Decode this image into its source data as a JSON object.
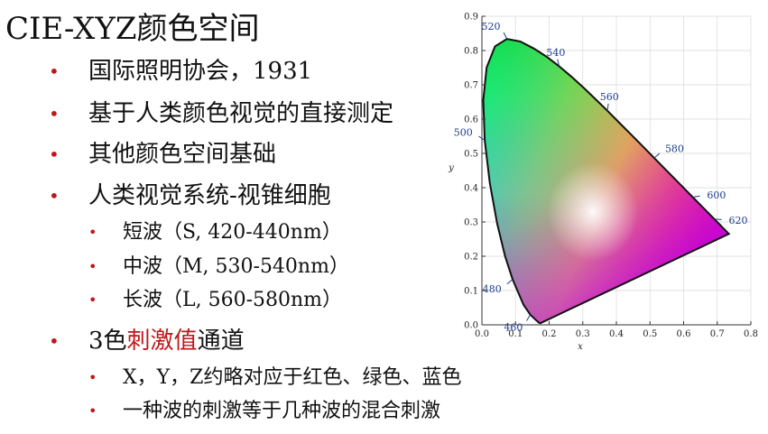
{
  "slide": {
    "title": "CIE-XYZ颜色空间",
    "bullets": [
      {
        "text": "国际照明协会，1931"
      },
      {
        "text": "基于人类颜色视觉的直接测定"
      },
      {
        "text": "其他颜色空间基础"
      },
      {
        "text": "人类视觉系统-视锥细胞"
      },
      {
        "text": "短波（S, 420-440nm）"
      },
      {
        "text": "中波（M, 530-540nm）"
      },
      {
        "text": "长波（L, 560-580nm）"
      },
      {
        "pre": "3色",
        "highlight": "刺激值",
        "post": "通道"
      },
      {
        "text": "X，Y，Z约略对应于红色、绿色、蓝色"
      },
      {
        "text": "一种波的刺激等于几种波的混合刺激"
      }
    ],
    "bullet_color": "#c0161a",
    "highlight_color": "#c0161a"
  },
  "chart_data": {
    "type": "scatter",
    "title": "",
    "xlabel": "x",
    "ylabel": "y",
    "xlim": [
      0.0,
      0.8
    ],
    "ylim": [
      0.0,
      0.9
    ],
    "x_ticks": [
      "0.0",
      "0.1",
      "0.2",
      "0.3",
      "0.4",
      "0.5",
      "0.6",
      "0.7",
      "0.8"
    ],
    "y_ticks": [
      "0.0",
      "0.1",
      "0.2",
      "0.3",
      "0.4",
      "0.5",
      "0.6",
      "0.7",
      "0.8",
      "0.9"
    ],
    "grid": true,
    "locus": [
      [
        0.1741,
        0.005
      ],
      [
        0.1738,
        0.0049
      ],
      [
        0.1726,
        0.0048
      ],
      [
        0.1689,
        0.0069
      ],
      [
        0.1644,
        0.0109
      ],
      [
        0.1566,
        0.0177
      ],
      [
        0.144,
        0.0297
      ],
      [
        0.1241,
        0.0578
      ],
      [
        0.0913,
        0.1327
      ],
      [
        0.0687,
        0.2007
      ],
      [
        0.0454,
        0.295
      ],
      [
        0.0235,
        0.4127
      ],
      [
        0.0082,
        0.5384
      ],
      [
        0.0039,
        0.6548
      ],
      [
        0.0139,
        0.7502
      ],
      [
        0.0389,
        0.812
      ],
      [
        0.0743,
        0.8338
      ],
      [
        0.1142,
        0.8262
      ],
      [
        0.1547,
        0.8059
      ],
      [
        0.1929,
        0.7816
      ],
      [
        0.2296,
        0.7543
      ],
      [
        0.2658,
        0.7243
      ],
      [
        0.3016,
        0.6923
      ],
      [
        0.3373,
        0.6589
      ],
      [
        0.3731,
        0.6245
      ],
      [
        0.4087,
        0.5896
      ],
      [
        0.4441,
        0.5547
      ],
      [
        0.4788,
        0.5202
      ],
      [
        0.5125,
        0.4866
      ],
      [
        0.5448,
        0.4544
      ],
      [
        0.5752,
        0.4242
      ],
      [
        0.6029,
        0.3965
      ],
      [
        0.627,
        0.3725
      ],
      [
        0.6482,
        0.3514
      ],
      [
        0.6658,
        0.334
      ],
      [
        0.6801,
        0.3197
      ],
      [
        0.6915,
        0.3083
      ],
      [
        0.7006,
        0.2993
      ],
      [
        0.7079,
        0.292
      ],
      [
        0.714,
        0.2859
      ],
      [
        0.719,
        0.2809
      ],
      [
        0.723,
        0.277
      ],
      [
        0.726,
        0.274
      ],
      [
        0.7283,
        0.2717
      ],
      [
        0.73,
        0.27
      ],
      [
        0.7347,
        0.2653
      ]
    ],
    "wavelength_labels": [
      {
        "label": "460",
        "x": 0.144,
        "y": 0.0297
      },
      {
        "label": "480",
        "x": 0.0913,
        "y": 0.1327
      },
      {
        "label": "500",
        "x": 0.0082,
        "y": 0.5384
      },
      {
        "label": "520",
        "x": 0.0743,
        "y": 0.8338
      },
      {
        "label": "540",
        "x": 0.2296,
        "y": 0.7543
      },
      {
        "label": "560",
        "x": 0.3731,
        "y": 0.6245
      },
      {
        "label": "580",
        "x": 0.5125,
        "y": 0.4866
      },
      {
        "label": "600",
        "x": 0.627,
        "y": 0.3725
      },
      {
        "label": "620",
        "x": 0.6915,
        "y": 0.3083
      }
    ]
  }
}
